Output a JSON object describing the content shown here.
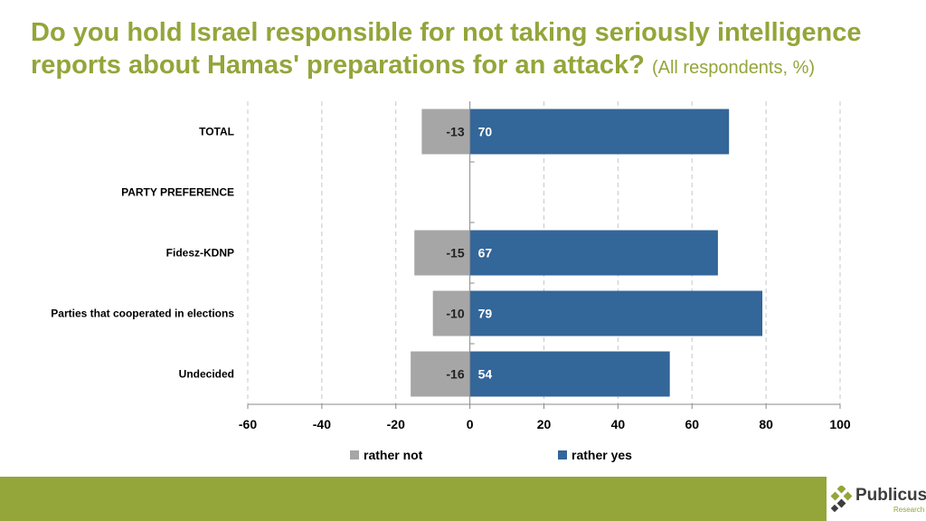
{
  "title": {
    "main": "Do you hold Israel responsible for not taking seriously intelligence reports about Hamas' preparations for an attack?",
    "subtitle": "(All respondents, %)"
  },
  "chart_data": {
    "type": "bar",
    "orientation": "horizontal",
    "stacked": true,
    "categories": [
      "TOTAL",
      "PARTY PREFERENCE",
      "Fidesz-KDNP",
      "Parties that cooperated in elections",
      "Undecided"
    ],
    "series": [
      {
        "name": "rather not",
        "values": [
          -13,
          null,
          -15,
          -10,
          -16
        ],
        "color": "#a6a6a6"
      },
      {
        "name": "rather yes",
        "values": [
          70,
          null,
          67,
          79,
          54
        ],
        "color": "#336699"
      }
    ],
    "xlim": [
      -60,
      100
    ],
    "xticks": [
      -60,
      -40,
      -20,
      0,
      20,
      40,
      60,
      80,
      100
    ],
    "grid": "vertical-dashed",
    "legend": "bottom",
    "xlabel": "",
    "ylabel": ""
  },
  "logo": {
    "name": "Publicus",
    "sub": "Research"
  },
  "colors": {
    "accent": "#94a53a",
    "rather_not": "#a6a6a6",
    "rather_yes": "#336699"
  }
}
